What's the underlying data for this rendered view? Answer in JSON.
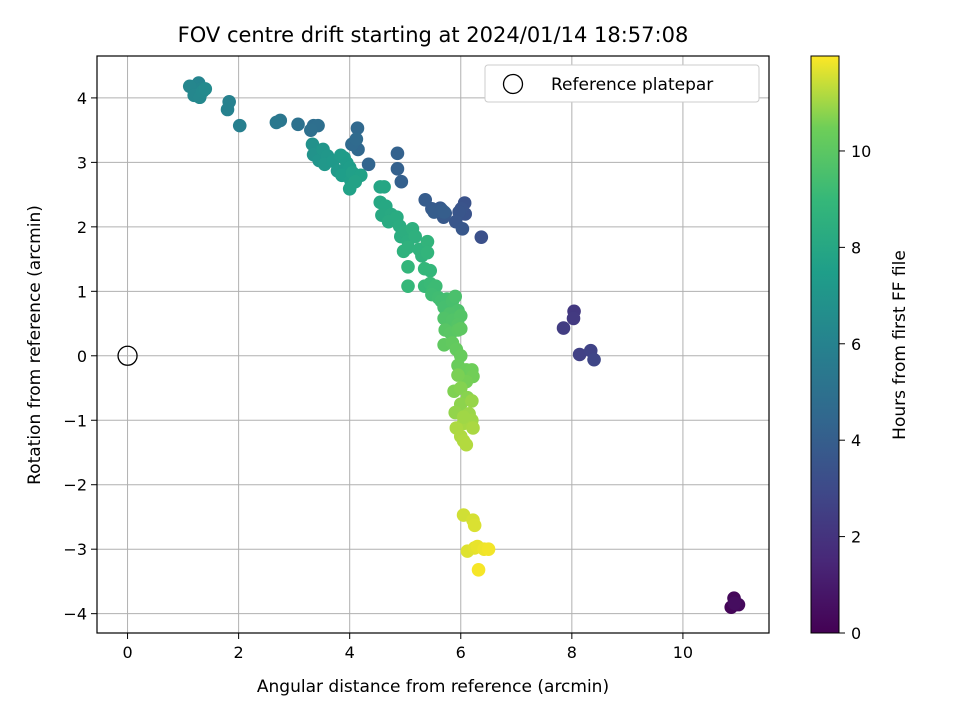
{
  "chart_data": {
    "type": "scatter",
    "title": "FOV centre drift starting at 2024/01/14 18:57:08",
    "xlabel": "Angular distance from reference (arcmin)",
    "ylabel": "Rotation from reference (arcmin)",
    "xlim": [
      -0.55,
      11.55
    ],
    "ylim": [
      -4.3,
      4.65
    ],
    "xticks": [
      0,
      2,
      4,
      6,
      8,
      10
    ],
    "yticks": [
      -4,
      -3,
      -2,
      -1,
      0,
      1,
      2,
      3,
      4
    ],
    "grid": true,
    "legend": {
      "position": "top-right",
      "entries": [
        "Reference platepar"
      ]
    },
    "reference_point": {
      "x": 0,
      "y": 0,
      "label": "Reference platepar"
    },
    "colorbar": {
      "label": "Hours from first FF file",
      "colormap": "viridis",
      "min": 0,
      "max": 11.97,
      "ticks": [
        0,
        2,
        4,
        6,
        8,
        10
      ]
    },
    "points": [
      {
        "x": 10.87,
        "y": -3.9,
        "t": 0.15
      },
      {
        "x": 10.92,
        "y": -3.76,
        "t": 0.25
      },
      {
        "x": 11.0,
        "y": -3.86,
        "t": 0.35
      },
      {
        "x": 10.93,
        "y": -3.84,
        "t": 0.45
      },
      {
        "x": 8.04,
        "y": 0.69,
        "t": 2.2
      },
      {
        "x": 8.03,
        "y": 0.58,
        "t": 2.3
      },
      {
        "x": 7.85,
        "y": 0.43,
        "t": 2.4
      },
      {
        "x": 8.14,
        "y": 0.02,
        "t": 2.6
      },
      {
        "x": 8.34,
        "y": 0.08,
        "t": 2.7
      },
      {
        "x": 8.4,
        "y": -0.06,
        "t": 2.8
      },
      {
        "x": 6.37,
        "y": 1.84,
        "t": 3.3
      },
      {
        "x": 6.07,
        "y": 2.37,
        "t": 3.4
      },
      {
        "x": 6.08,
        "y": 2.2,
        "t": 3.45
      },
      {
        "x": 6.01,
        "y": 2.28,
        "t": 3.5
      },
      {
        "x": 5.97,
        "y": 2.23,
        "t": 3.55
      },
      {
        "x": 5.91,
        "y": 2.08,
        "t": 3.6
      },
      {
        "x": 6.03,
        "y": 1.97,
        "t": 3.65
      },
      {
        "x": 5.72,
        "y": 2.21,
        "t": 3.7
      },
      {
        "x": 5.69,
        "y": 2.15,
        "t": 3.72
      },
      {
        "x": 5.63,
        "y": 2.29,
        "t": 3.75
      },
      {
        "x": 5.55,
        "y": 2.25,
        "t": 3.8
      },
      {
        "x": 5.48,
        "y": 2.28,
        "t": 3.85
      },
      {
        "x": 5.36,
        "y": 2.42,
        "t": 3.9
      },
      {
        "x": 5.52,
        "y": 2.23,
        "t": 3.92
      },
      {
        "x": 5.66,
        "y": 2.26,
        "t": 3.95
      },
      {
        "x": 5.7,
        "y": 2.23,
        "t": 3.97
      },
      {
        "x": 4.93,
        "y": 2.7,
        "t": 4.1
      },
      {
        "x": 4.86,
        "y": 2.9,
        "t": 4.15
      },
      {
        "x": 4.86,
        "y": 3.14,
        "t": 4.2
      },
      {
        "x": 4.34,
        "y": 2.97,
        "t": 4.35
      },
      {
        "x": 4.15,
        "y": 3.2,
        "t": 4.5
      },
      {
        "x": 4.14,
        "y": 3.53,
        "t": 4.55
      },
      {
        "x": 4.04,
        "y": 3.28,
        "t": 4.6
      },
      {
        "x": 4.12,
        "y": 3.36,
        "t": 4.65
      },
      {
        "x": 3.35,
        "y": 3.57,
        "t": 4.85
      },
      {
        "x": 3.43,
        "y": 3.57,
        "t": 4.9
      },
      {
        "x": 3.3,
        "y": 3.5,
        "t": 4.95
      },
      {
        "x": 3.07,
        "y": 3.59,
        "t": 5.0
      },
      {
        "x": 2.75,
        "y": 3.65,
        "t": 5.3
      },
      {
        "x": 2.68,
        "y": 3.62,
        "t": 5.4
      },
      {
        "x": 2.02,
        "y": 3.57,
        "t": 5.8
      },
      {
        "x": 1.83,
        "y": 3.94,
        "t": 5.9
      },
      {
        "x": 1.8,
        "y": 3.82,
        "t": 5.95
      },
      {
        "x": 1.28,
        "y": 4.23,
        "t": 6.1
      },
      {
        "x": 1.32,
        "y": 4.14,
        "t": 6.15
      },
      {
        "x": 1.12,
        "y": 4.18,
        "t": 6.2
      },
      {
        "x": 1.2,
        "y": 4.04,
        "t": 6.25
      },
      {
        "x": 1.3,
        "y": 4.01,
        "t": 6.3
      },
      {
        "x": 1.35,
        "y": 4.1,
        "t": 6.35
      },
      {
        "x": 1.4,
        "y": 4.14,
        "t": 6.4
      },
      {
        "x": 3.33,
        "y": 3.28,
        "t": 6.8
      },
      {
        "x": 3.35,
        "y": 3.12,
        "t": 6.9
      },
      {
        "x": 3.45,
        "y": 3.03,
        "t": 7.0
      },
      {
        "x": 3.52,
        "y": 3.2,
        "t": 7.05
      },
      {
        "x": 3.6,
        "y": 3.1,
        "t": 7.1
      },
      {
        "x": 3.55,
        "y": 2.97,
        "t": 7.15
      },
      {
        "x": 3.7,
        "y": 3.02,
        "t": 7.2
      },
      {
        "x": 3.78,
        "y": 2.87,
        "t": 7.25
      },
      {
        "x": 3.84,
        "y": 3.11,
        "t": 7.3
      },
      {
        "x": 3.9,
        "y": 3.07,
        "t": 7.35
      },
      {
        "x": 3.95,
        "y": 2.99,
        "t": 7.4
      },
      {
        "x": 4.0,
        "y": 2.92,
        "t": 7.45
      },
      {
        "x": 3.86,
        "y": 2.8,
        "t": 7.5
      },
      {
        "x": 4.02,
        "y": 2.72,
        "t": 7.55
      },
      {
        "x": 4.05,
        "y": 2.84,
        "t": 7.6
      },
      {
        "x": 4.2,
        "y": 2.8,
        "t": 7.65
      },
      {
        "x": 4.0,
        "y": 2.59,
        "t": 7.7
      },
      {
        "x": 4.1,
        "y": 2.7,
        "t": 7.72
      },
      {
        "x": 4.55,
        "y": 2.62,
        "t": 7.9
      },
      {
        "x": 4.62,
        "y": 2.62,
        "t": 7.95
      },
      {
        "x": 4.55,
        "y": 2.38,
        "t": 8.0
      },
      {
        "x": 4.65,
        "y": 2.32,
        "t": 8.05
      },
      {
        "x": 4.58,
        "y": 2.18,
        "t": 8.1
      },
      {
        "x": 4.75,
        "y": 2.19,
        "t": 8.15
      },
      {
        "x": 4.7,
        "y": 2.08,
        "t": 8.2
      },
      {
        "x": 4.85,
        "y": 2.15,
        "t": 8.25
      },
      {
        "x": 4.9,
        "y": 2.01,
        "t": 8.3
      },
      {
        "x": 4.92,
        "y": 1.85,
        "t": 8.35
      },
      {
        "x": 5.0,
        "y": 1.92,
        "t": 8.4
      },
      {
        "x": 5.05,
        "y": 1.78,
        "t": 8.45
      },
      {
        "x": 5.13,
        "y": 1.97,
        "t": 8.5
      },
      {
        "x": 5.18,
        "y": 1.85,
        "t": 8.55
      },
      {
        "x": 4.97,
        "y": 1.62,
        "t": 8.6
      },
      {
        "x": 5.05,
        "y": 1.68,
        "t": 8.62
      },
      {
        "x": 5.25,
        "y": 1.65,
        "t": 8.65
      },
      {
        "x": 5.3,
        "y": 1.55,
        "t": 8.7
      },
      {
        "x": 5.4,
        "y": 1.77,
        "t": 8.75
      },
      {
        "x": 5.4,
        "y": 1.6,
        "t": 8.8
      },
      {
        "x": 5.05,
        "y": 1.38,
        "t": 8.85
      },
      {
        "x": 5.35,
        "y": 1.35,
        "t": 8.9
      },
      {
        "x": 5.45,
        "y": 1.32,
        "t": 8.92
      },
      {
        "x": 5.05,
        "y": 1.08,
        "t": 8.95
      },
      {
        "x": 5.35,
        "y": 1.08,
        "t": 9.05
      },
      {
        "x": 5.45,
        "y": 1.12,
        "t": 9.1
      },
      {
        "x": 5.5,
        "y": 1.02,
        "t": 9.15
      },
      {
        "x": 5.55,
        "y": 1.08,
        "t": 9.2
      },
      {
        "x": 5.48,
        "y": 0.95,
        "t": 9.25
      },
      {
        "x": 5.6,
        "y": 0.9,
        "t": 9.3
      },
      {
        "x": 5.65,
        "y": 0.85,
        "t": 9.35
      },
      {
        "x": 5.75,
        "y": 0.88,
        "t": 9.4
      },
      {
        "x": 5.7,
        "y": 0.75,
        "t": 9.45
      },
      {
        "x": 5.85,
        "y": 0.85,
        "t": 9.5
      },
      {
        "x": 5.9,
        "y": 0.92,
        "t": 9.55
      },
      {
        "x": 5.95,
        "y": 0.7,
        "t": 9.6
      },
      {
        "x": 5.8,
        "y": 0.65,
        "t": 9.65
      },
      {
        "x": 5.7,
        "y": 0.58,
        "t": 9.7
      },
      {
        "x": 5.85,
        "y": 0.55,
        "t": 9.75
      },
      {
        "x": 6.0,
        "y": 0.62,
        "t": 9.8
      },
      {
        "x": 5.95,
        "y": 0.48,
        "t": 9.85
      },
      {
        "x": 5.72,
        "y": 0.4,
        "t": 9.9
      },
      {
        "x": 5.82,
        "y": 0.35,
        "t": 9.95
      },
      {
        "x": 5.95,
        "y": 0.4,
        "t": 10.0
      },
      {
        "x": 6.0,
        "y": 0.42,
        "t": 10.05
      },
      {
        "x": 5.7,
        "y": 0.17,
        "t": 10.1
      },
      {
        "x": 5.85,
        "y": 0.2,
        "t": 10.15
      },
      {
        "x": 5.92,
        "y": 0.1,
        "t": 10.2
      },
      {
        "x": 6.0,
        "y": 0.0,
        "t": 10.3
      },
      {
        "x": 5.95,
        "y": -0.15,
        "t": 10.35
      },
      {
        "x": 6.1,
        "y": -0.22,
        "t": 10.4
      },
      {
        "x": 6.2,
        "y": -0.22,
        "t": 10.45
      },
      {
        "x": 6.22,
        "y": -0.32,
        "t": 10.5
      },
      {
        "x": 6.1,
        "y": -0.4,
        "t": 10.55
      },
      {
        "x": 5.95,
        "y": -0.3,
        "t": 10.6
      },
      {
        "x": 5.88,
        "y": -0.55,
        "t": 10.65
      },
      {
        "x": 6.0,
        "y": -0.5,
        "t": 10.7
      },
      {
        "x": 6.12,
        "y": -0.65,
        "t": 10.75
      },
      {
        "x": 6.0,
        "y": -0.75,
        "t": 10.8
      },
      {
        "x": 5.9,
        "y": -0.88,
        "t": 10.85
      },
      {
        "x": 6.2,
        "y": -0.7,
        "t": 10.9
      },
      {
        "x": 6.15,
        "y": -0.9,
        "t": 10.95
      },
      {
        "x": 6.2,
        "y": -1.0,
        "t": 11.0
      },
      {
        "x": 6.05,
        "y": -1.05,
        "t": 11.05
      },
      {
        "x": 6.22,
        "y": -1.12,
        "t": 11.1
      },
      {
        "x": 5.92,
        "y": -1.12,
        "t": 11.12
      },
      {
        "x": 6.0,
        "y": -1.25,
        "t": 11.15
      },
      {
        "x": 6.05,
        "y": -1.32,
        "t": 11.18
      },
      {
        "x": 6.1,
        "y": -1.38,
        "t": 11.2
      },
      {
        "x": 6.05,
        "y": -0.95,
        "t": 11.0
      },
      {
        "x": 6.05,
        "y": -2.47,
        "t": 11.5
      },
      {
        "x": 6.22,
        "y": -2.55,
        "t": 11.55
      },
      {
        "x": 6.25,
        "y": -2.63,
        "t": 11.6
      },
      {
        "x": 6.12,
        "y": -3.03,
        "t": 11.65
      },
      {
        "x": 6.25,
        "y": -2.98,
        "t": 11.7
      },
      {
        "x": 6.3,
        "y": -2.96,
        "t": 11.75
      },
      {
        "x": 6.42,
        "y": -3.0,
        "t": 11.8
      },
      {
        "x": 6.5,
        "y": -3.0,
        "t": 11.85
      },
      {
        "x": 6.32,
        "y": -3.32,
        "t": 11.9
      }
    ]
  },
  "colors": {
    "grid": "#b0b0b0",
    "axes": "#000000",
    "reference_marker": "#000000"
  }
}
